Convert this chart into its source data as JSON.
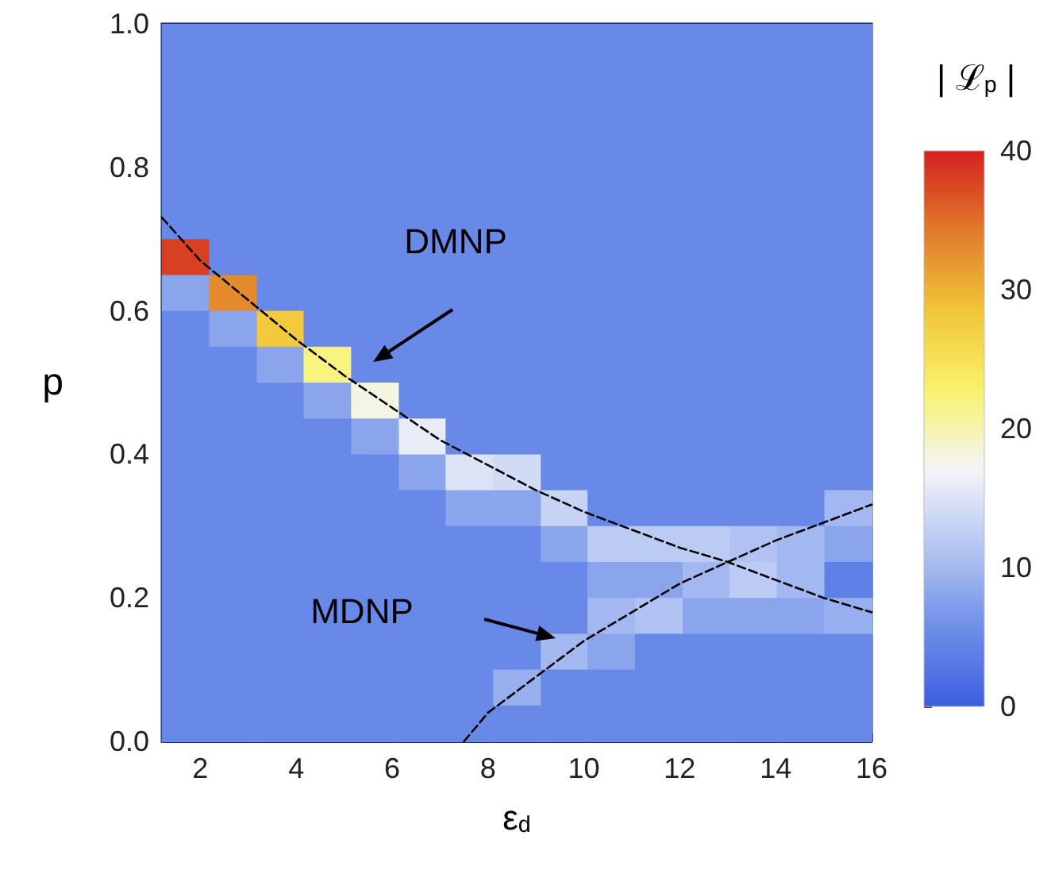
{
  "chart_data": {
    "type": "heatmap",
    "xlabel": "ε$_{d}$",
    "ylabel": "p",
    "clabel": "| ℒ$_{p}$ |",
    "clim": [
      0,
      40
    ],
    "cticks": [
      0,
      10,
      20,
      30,
      40
    ],
    "xlim": [
      1.2,
      16
    ],
    "xticks": [
      2,
      4,
      6,
      8,
      10,
      12,
      14,
      16
    ],
    "ylim": [
      0,
      1
    ],
    "yticks": [
      {
        "value": 0,
        "label": "0.0"
      },
      {
        "value": 0.2,
        "label": "0.2"
      },
      {
        "value": 0.4,
        "label": "0.4"
      },
      {
        "value": 0.6,
        "label": "0.6"
      },
      {
        "value": 0.8,
        "label": "0.8"
      },
      {
        "value": 1,
        "label": "1.0"
      }
    ],
    "x": [
      1.69,
      2.68,
      3.67,
      4.65,
      5.64,
      6.63,
      7.61,
      8.6,
      9.59,
      10.57,
      11.56,
      12.55,
      13.53,
      14.52,
      15.51
    ],
    "y": [
      0.975,
      0.925,
      0.875,
      0.825,
      0.775,
      0.725,
      0.675,
      0.625,
      0.575,
      0.525,
      0.475,
      0.425,
      0.375,
      0.325,
      0.275,
      0.225,
      0.175,
      0.125,
      0.075,
      0.025
    ],
    "cells": [
      [
        5,
        5,
        5,
        5,
        5,
        5,
        5,
        5,
        5,
        5,
        5,
        5,
        5,
        5,
        5
      ],
      [
        5,
        5,
        5,
        5,
        5,
        5,
        5,
        5,
        5,
        5,
        5,
        5,
        5,
        5,
        5
      ],
      [
        5,
        5,
        5,
        5,
        5,
        5,
        5,
        5,
        5,
        5,
        5,
        5,
        5,
        5,
        5
      ],
      [
        5,
        5,
        5,
        5,
        5,
        5,
        5,
        5,
        5,
        5,
        5,
        5,
        5,
        5,
        5
      ],
      [
        5,
        5,
        5,
        5,
        5,
        5,
        5,
        5,
        5,
        5,
        5,
        5,
        5,
        5,
        5
      ],
      [
        5,
        5,
        5,
        5,
        5,
        5,
        5,
        5,
        5,
        5,
        5,
        5,
        5,
        5,
        5
      ],
      [
        38,
        5,
        5,
        5,
        5,
        5,
        5,
        5,
        5,
        5,
        5,
        5,
        5,
        5,
        5
      ],
      [
        8,
        33,
        5,
        5,
        5,
        5,
        5,
        5,
        5,
        5,
        5,
        5,
        5,
        5,
        5
      ],
      [
        5,
        8,
        28,
        5,
        5,
        5,
        5,
        5,
        5,
        5,
        5,
        5,
        5,
        5,
        5
      ],
      [
        5,
        5,
        8,
        22,
        5,
        5,
        5,
        5,
        5,
        5,
        5,
        5,
        5,
        5,
        5
      ],
      [
        5,
        5,
        5,
        8,
        18,
        5,
        5,
        5,
        5,
        5,
        5,
        5,
        5,
        5,
        5
      ],
      [
        5,
        5,
        5,
        5,
        8,
        16,
        5,
        5,
        5,
        5,
        5,
        5,
        5,
        5,
        5
      ],
      [
        5,
        5,
        5,
        5,
        5,
        8,
        15,
        14,
        5,
        5,
        5,
        5,
        5,
        5,
        5
      ],
      [
        5,
        5,
        5,
        5,
        5,
        5,
        8,
        8,
        13,
        5,
        5,
        5,
        5,
        5,
        10
      ],
      [
        5,
        5,
        5,
        5,
        5,
        5,
        5,
        5,
        8,
        12,
        12,
        12,
        11,
        10,
        8
      ],
      [
        5,
        5,
        5,
        5,
        5,
        5,
        5,
        5,
        5,
        8,
        8,
        10,
        12,
        10,
        4
      ],
      [
        5,
        5,
        5,
        5,
        5,
        5,
        5,
        5,
        5,
        10,
        11,
        8,
        8,
        8,
        9
      ],
      [
        5,
        5,
        5,
        5,
        5,
        5,
        5,
        5,
        10,
        8,
        5,
        5,
        5,
        5,
        5
      ],
      [
        5,
        5,
        5,
        5,
        5,
        5,
        5,
        9,
        5,
        5,
        5,
        5,
        5,
        5,
        5
      ],
      [
        5,
        5,
        5,
        5,
        5,
        5,
        5,
        5,
        5,
        5,
        5,
        5,
        5,
        5,
        5
      ]
    ],
    "series": [
      {
        "type": "line",
        "color": "#000000",
        "line_style": "dashed",
        "marker": "none",
        "x": [
          1.2,
          2,
          3,
          4,
          5,
          6,
          7,
          8,
          9,
          10,
          11,
          12,
          13,
          14,
          15,
          16
        ],
        "values": [
          0.73,
          0.67,
          0.615,
          0.56,
          0.51,
          0.465,
          0.42,
          0.385,
          0.35,
          0.32,
          0.295,
          0.27,
          0.25,
          0.225,
          0.2,
          0.18
        ]
      },
      {
        "type": "line",
        "color": "#000000",
        "line_style": "dashed",
        "marker": "none",
        "x": [
          7.5,
          8,
          9,
          10,
          11,
          12,
          13,
          14,
          15,
          16
        ],
        "values": [
          0,
          0.04,
          0.09,
          0.14,
          0.18,
          0.22,
          0.25,
          0.28,
          0.305,
          0.33
        ]
      }
    ],
    "annotations": [
      "DMNP",
      "MDNP"
    ]
  }
}
